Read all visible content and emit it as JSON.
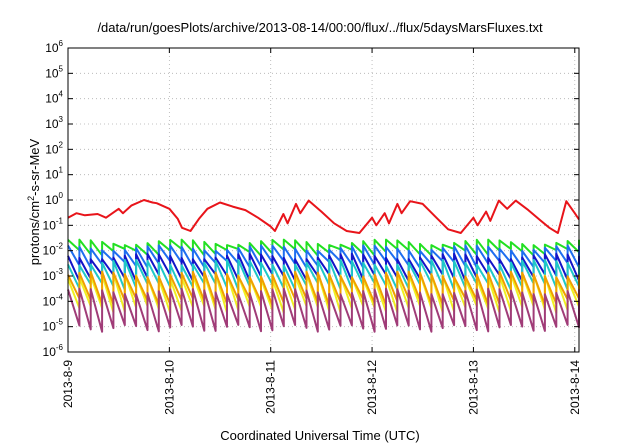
{
  "chart_data": {
    "type": "line",
    "title": "/data/run/goesPlots/archive/2013-08-14/00:00/flux/../flux/5daysMarsFluxes.txt",
    "xlabel": "Coordinated Universal Time (UTC)",
    "ylabel": {
      "prefix": "protons/cm",
      "sup": "2",
      "suffix": "-s-sr-MeV"
    },
    "x_ticks": [
      "2013-8-9",
      "2013-8-10",
      "2013-8-11",
      "2013-8-12",
      "2013-8-13",
      "2013-8-14"
    ],
    "xlim": [
      "2013-08-09T00:00",
      "2013-08-14T01:00"
    ],
    "y_scale": "log",
    "ylim": [
      1e-06,
      1000000.0
    ],
    "y_ticks": [
      {
        "base": "10",
        "exp": "-6"
      },
      {
        "base": "10",
        "exp": "-5"
      },
      {
        "base": "10",
        "exp": "-4"
      },
      {
        "base": "10",
        "exp": "-3"
      },
      {
        "base": "10",
        "exp": "-2"
      },
      {
        "base": "10",
        "exp": "-1"
      },
      {
        "base": "10",
        "exp": "0"
      },
      {
        "base": "10",
        "exp": "1"
      },
      {
        "base": "10",
        "exp": "2"
      },
      {
        "base": "10",
        "exp": "3"
      },
      {
        "base": "10",
        "exp": "4"
      },
      {
        "base": "10",
        "exp": "5"
      },
      {
        "base": "10",
        "exp": "6"
      }
    ],
    "grid": true,
    "series": [
      {
        "color": "#e8141a",
        "x": [
          "2013-08-09T00:00",
          "2013-08-09T02:00",
          "2013-08-09T04:00",
          "2013-08-09T07:00",
          "2013-08-09T09:00",
          "2013-08-09T12:00",
          "2013-08-09T13:00",
          "2013-08-09T15:00",
          "2013-08-09T18:00",
          "2013-08-09T20:00",
          "2013-08-09T21:00",
          "2013-08-10T00:00",
          "2013-08-10T02:00",
          "2013-08-10T03:00",
          "2013-08-10T05:00",
          "2013-08-10T07:00",
          "2013-08-10T09:00",
          "2013-08-10T12:00",
          "2013-08-10T15:00",
          "2013-08-10T18:00",
          "2013-08-10T21:00",
          "2013-08-11T00:00",
          "2013-08-11T01:00",
          "2013-08-11T03:00",
          "2013-08-11T04:00",
          "2013-08-11T06:00",
          "2013-08-11T07:00",
          "2013-08-11T09:00",
          "2013-08-11T12:00",
          "2013-08-11T15:00",
          "2013-08-11T18:00",
          "2013-08-11T21:00",
          "2013-08-12T00:00",
          "2013-08-12T01:00",
          "2013-08-12T03:00",
          "2013-08-12T04:00",
          "2013-08-12T06:00",
          "2013-08-12T07:00",
          "2013-08-12T09:00",
          "2013-08-12T12:00",
          "2013-08-12T15:00",
          "2013-08-12T18:00",
          "2013-08-12T21:00",
          "2013-08-13T00:00",
          "2013-08-13T01:00",
          "2013-08-13T03:00",
          "2013-08-13T04:00",
          "2013-08-13T06:00",
          "2013-08-13T08:00",
          "2013-08-13T10:00",
          "2013-08-13T13:00",
          "2013-08-13T16:00",
          "2013-08-13T18:00",
          "2013-08-13T20:00",
          "2013-08-13T22:00",
          "2013-08-14T00:00",
          "2013-08-14T01:00"
        ],
        "y": [
          0.2,
          0.3,
          0.25,
          0.28,
          0.2,
          0.45,
          0.3,
          0.6,
          1.0,
          0.8,
          0.75,
          0.45,
          0.18,
          0.08,
          0.06,
          0.18,
          0.45,
          0.8,
          0.55,
          0.4,
          0.2,
          0.09,
          0.06,
          0.28,
          0.12,
          0.7,
          0.3,
          0.95,
          0.35,
          0.12,
          0.06,
          0.05,
          0.2,
          0.1,
          0.3,
          0.12,
          0.7,
          0.3,
          0.9,
          0.7,
          0.22,
          0.07,
          0.05,
          0.2,
          0.1,
          0.35,
          0.15,
          0.95,
          0.45,
          0.95,
          0.4,
          0.15,
          0.08,
          0.05,
          0.9,
          0.3,
          0.17
        ]
      },
      {
        "color": "#22e022",
        "teeth": 45,
        "base": 0.009,
        "peak": 0.022
      },
      {
        "color": "#1e6ef0",
        "teeth": 45,
        "base": 0.003,
        "peak": 0.013
      },
      {
        "color": "#1414c8",
        "teeth": 45,
        "base": 0.0009,
        "peak": 0.006
      },
      {
        "color": "#1ec8c8",
        "teeth": 45,
        "base": 0.0004,
        "peak": 0.0035
      },
      {
        "color": "#f0f020",
        "teeth": 45,
        "base": 5e-05,
        "peak": 0.001
      },
      {
        "color": "#f0a000",
        "teeth": 45,
        "base": 0.0001,
        "peak": 0.0012
      },
      {
        "color": "#a03c78",
        "teeth": 45,
        "base": 9e-06,
        "peak": 0.00025
      }
    ]
  }
}
